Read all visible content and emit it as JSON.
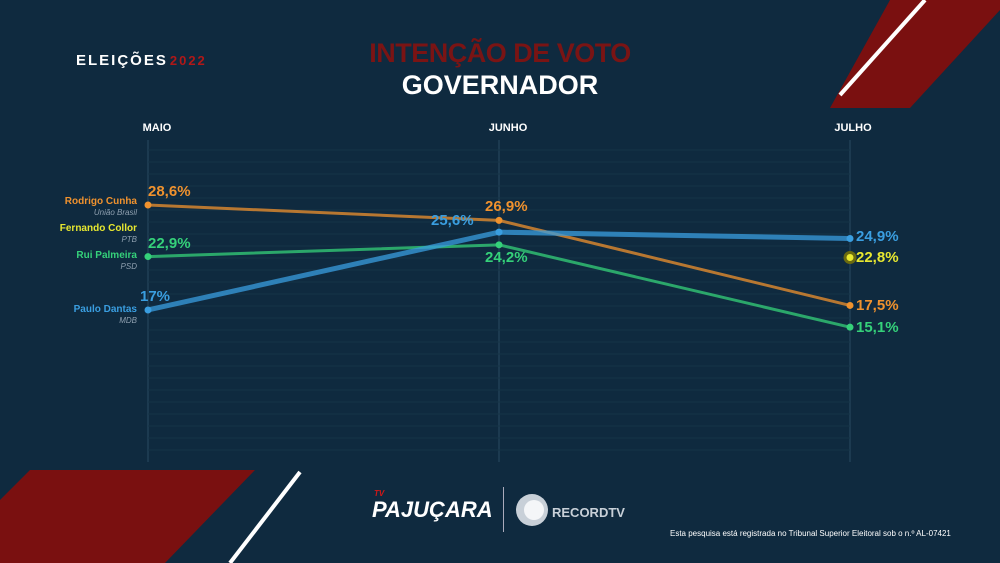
{
  "header": {
    "logo": "ELEIÇÕES",
    "logo_year": "2022",
    "title": "INTENÇÃO DE VOTO",
    "subtitle": "GOVERNADOR"
  },
  "chart_data": {
    "type": "line",
    "title": "INTENÇÃO DE VOTO - GOVERNADOR",
    "categories": [
      "MAIO",
      "JUNHO",
      "JULHO"
    ],
    "ylim": [
      10,
      32
    ],
    "series": [
      {
        "name": "Rodrigo Cunha",
        "party": "União Brasil",
        "color": "#f0922e",
        "values": [
          28.6,
          26.9,
          17.5
        ],
        "labels": [
          "28,6%",
          "26,9%",
          "17,5%"
        ]
      },
      {
        "name": "Fernando Collor",
        "party": "PTB",
        "color": "#e8e830",
        "values": [
          null,
          null,
          22.8
        ],
        "labels": [
          "",
          "",
          "22,8%"
        ]
      },
      {
        "name": "Rui Palmeira",
        "party": "PSD",
        "color": "#35d17a",
        "values": [
          22.9,
          24.2,
          15.1
        ],
        "labels": [
          "22,9%",
          "24,2%",
          "15,1%"
        ]
      },
      {
        "name": "Paulo Dantas",
        "party": "MDB",
        "color": "#3a9ee0",
        "values": [
          17,
          25.6,
          24.9
        ],
        "labels": [
          "17%",
          "25,6%",
          "24,9%"
        ]
      }
    ]
  },
  "footer": {
    "tv": "TV",
    "brand1": "PAJUÇARA",
    "brand2": "RECORDTV",
    "note": "Esta pesquisa está registrada no Tribunal Superior Eleitoral sob o n.º AL-07421"
  }
}
